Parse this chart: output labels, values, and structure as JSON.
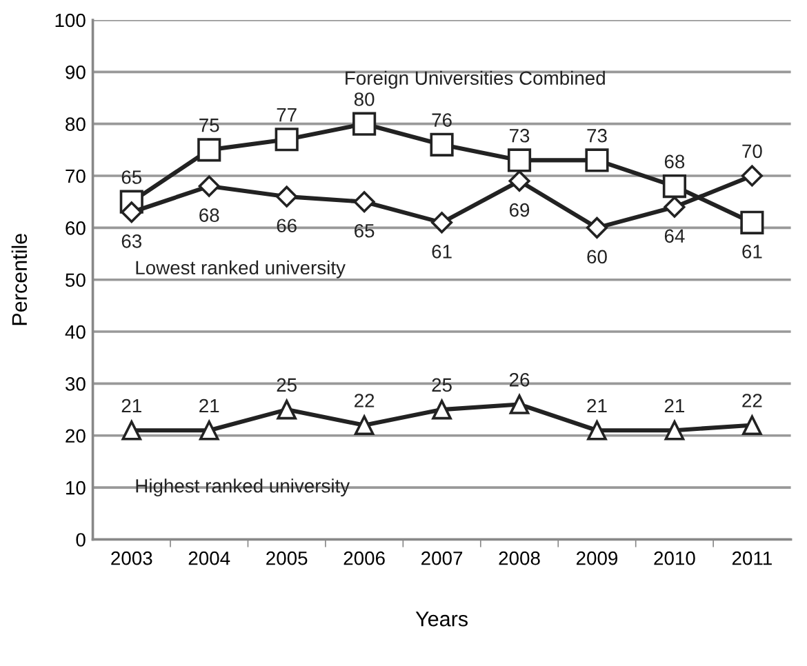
{
  "chart_data": {
    "type": "line",
    "xlabel": "Years",
    "ylabel": "Percentile",
    "categories": [
      "2003",
      "2004",
      "2005",
      "2006",
      "2007",
      "2008",
      "2009",
      "2010",
      "2011"
    ],
    "series": [
      {
        "name": "Foreign Universities Combined",
        "color": "#222222",
        "marker": "square",
        "values": [
          65,
          75,
          77,
          80,
          76,
          73,
          73,
          68,
          61
        ],
        "value_labels": [
          "65",
          "75",
          "77",
          "80",
          "76",
          "73",
          "73",
          "68",
          "61"
        ]
      },
      {
        "name": "Lowest ranked university",
        "color": "#222222",
        "marker": "diamond",
        "values": [
          63,
          68,
          66,
          65,
          61,
          69,
          60,
          64,
          70
        ],
        "value_labels": [
          "63",
          "68",
          "66",
          "65",
          "61",
          "69",
          "60",
          "64",
          "70"
        ]
      },
      {
        "name": "Highest ranked university",
        "color": "#222222",
        "marker": "triangle",
        "values": [
          21,
          21,
          25,
          22,
          25,
          26,
          21,
          21,
          22
        ],
        "value_labels": [
          "21",
          "21",
          "25",
          "22",
          "25",
          "26",
          "21",
          "21",
          "22"
        ]
      }
    ],
    "ylim": [
      0,
      100
    ],
    "yticks": [
      0,
      10,
      20,
      30,
      40,
      50,
      60,
      70,
      80,
      90,
      100
    ],
    "grid": "y",
    "legend": false,
    "line_style": "solid"
  }
}
